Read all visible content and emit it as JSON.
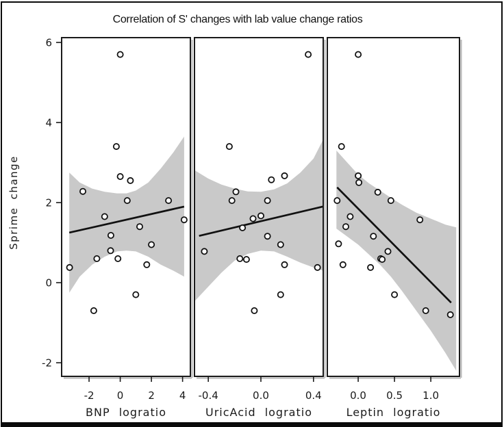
{
  "chart_data": {
    "type": "scatter",
    "title": "Correlation of S' changes with lab value change ratios",
    "ylabel": "Sprime change",
    "ylim": [
      -2.34,
      6.12
    ],
    "yticks": [
      -2,
      0,
      2,
      4,
      6
    ],
    "ytick_labels": [
      "-2",
      "0",
      "2",
      "4",
      "6"
    ],
    "shared_y_axis": true,
    "legend": "none",
    "grid": false,
    "band_color": "#c9c9c9",
    "line_color": "#111111",
    "marker": "open-circle",
    "panels": [
      {
        "xlabel": "BNP logratio",
        "xlim": [
          -3.76,
          4.5
        ],
        "xticks": [
          -2,
          0,
          2,
          4
        ],
        "xtick_labels": [
          "-2",
          "0",
          "2",
          "4"
        ],
        "points": [
          [
            0.0,
            5.7
          ],
          [
            -0.25,
            3.4
          ],
          [
            0.0,
            2.65
          ],
          [
            0.65,
            2.55
          ],
          [
            -2.4,
            2.28
          ],
          [
            0.45,
            2.05
          ],
          [
            3.1,
            2.05
          ],
          [
            -1.0,
            1.65
          ],
          [
            4.1,
            1.57
          ],
          [
            1.25,
            1.4
          ],
          [
            -0.6,
            1.18
          ],
          [
            2.0,
            0.95
          ],
          [
            -0.62,
            0.8
          ],
          [
            -1.5,
            0.6
          ],
          [
            -0.15,
            0.6
          ],
          [
            1.7,
            0.45
          ],
          [
            -3.25,
            0.38
          ],
          [
            1.0,
            -0.3
          ],
          [
            -1.7,
            -0.7
          ]
        ],
        "fit_line": {
          "x": [
            -3.27,
            4.1
          ],
          "y": [
            1.25,
            1.9
          ]
        },
        "band": [
          [
            -3.27,
            -0.25,
            2.75
          ],
          [
            -2.6,
            0.15,
            2.5
          ],
          [
            -1.8,
            0.45,
            2.35
          ],
          [
            -1.0,
            0.65,
            2.27
          ],
          [
            -0.2,
            0.78,
            2.23
          ],
          [
            0.4,
            0.8,
            2.23
          ],
          [
            1.0,
            0.78,
            2.3
          ],
          [
            1.8,
            0.65,
            2.5
          ],
          [
            2.6,
            0.45,
            2.85
          ],
          [
            3.4,
            0.3,
            3.25
          ],
          [
            4.1,
            0.15,
            3.65
          ]
        ]
      },
      {
        "xlabel": "UricAcid logratio",
        "xlim": [
          -0.505,
          0.474
        ],
        "xticks": [
          -0.4,
          0.0,
          0.4
        ],
        "xtick_labels": [
          "-0.4",
          "0.0",
          "0.4"
        ],
        "points": [
          [
            0.36,
            5.7
          ],
          [
            -0.24,
            3.4
          ],
          [
            0.18,
            2.67
          ],
          [
            0.08,
            2.57
          ],
          [
            -0.19,
            2.27
          ],
          [
            -0.22,
            2.05
          ],
          [
            0.05,
            2.05
          ],
          [
            0.0,
            1.67
          ],
          [
            -0.06,
            1.6
          ],
          [
            -0.14,
            1.37
          ],
          [
            0.05,
            1.16
          ],
          [
            0.15,
            0.95
          ],
          [
            -0.43,
            0.78
          ],
          [
            -0.16,
            0.6
          ],
          [
            -0.11,
            0.58
          ],
          [
            0.18,
            0.45
          ],
          [
            0.43,
            0.38
          ],
          [
            0.15,
            -0.3
          ],
          [
            -0.05,
            -0.7
          ]
        ],
        "fit_line": {
          "x": [
            -0.47,
            0.47
          ],
          "y": [
            1.17,
            1.9
          ]
        },
        "band": [
          [
            -0.5,
            -0.45,
            2.8
          ],
          [
            -0.4,
            -0.1,
            2.6
          ],
          [
            -0.3,
            0.25,
            2.45
          ],
          [
            -0.2,
            0.55,
            2.35
          ],
          [
            -0.1,
            0.72,
            2.28
          ],
          [
            0.0,
            0.8,
            2.27
          ],
          [
            0.1,
            0.78,
            2.33
          ],
          [
            0.2,
            0.65,
            2.48
          ],
          [
            0.3,
            0.5,
            2.75
          ],
          [
            0.4,
            0.38,
            3.1
          ],
          [
            0.47,
            0.3,
            3.55
          ]
        ]
      },
      {
        "xlabel": "Leptin logratio",
        "xlim": [
          -0.425,
          1.395
        ],
        "xticks": [
          0.0,
          0.5,
          1.0
        ],
        "xtick_labels": [
          "0.0",
          "0.5",
          "1.0"
        ],
        "points": [
          [
            0.0,
            5.7
          ],
          [
            -0.23,
            3.4
          ],
          [
            0.0,
            2.67
          ],
          [
            0.01,
            2.5
          ],
          [
            0.27,
            2.26
          ],
          [
            -0.29,
            2.05
          ],
          [
            0.45,
            2.05
          ],
          [
            -0.11,
            1.65
          ],
          [
            0.85,
            1.57
          ],
          [
            -0.17,
            1.4
          ],
          [
            0.21,
            1.16
          ],
          [
            -0.27,
            0.97
          ],
          [
            0.41,
            0.78
          ],
          [
            0.31,
            0.6
          ],
          [
            0.33,
            0.58
          ],
          [
            -0.21,
            0.45
          ],
          [
            0.17,
            0.38
          ],
          [
            0.5,
            -0.3
          ],
          [
            0.93,
            -0.7
          ],
          [
            1.27,
            -0.8
          ]
        ],
        "fit_line": {
          "x": [
            -0.29,
            1.28
          ],
          "y": [
            2.38,
            -0.5
          ]
        },
        "band": [
          [
            -0.3,
            1.35,
            3.3
          ],
          [
            -0.15,
            1.15,
            3.0
          ],
          [
            0.0,
            0.95,
            2.7
          ],
          [
            0.15,
            0.7,
            2.48
          ],
          [
            0.3,
            0.45,
            2.3
          ],
          [
            0.45,
            0.15,
            2.12
          ],
          [
            0.6,
            -0.2,
            1.95
          ],
          [
            0.8,
            -0.7,
            1.75
          ],
          [
            1.0,
            -1.2,
            1.6
          ],
          [
            1.2,
            -1.75,
            1.45
          ],
          [
            1.35,
            -2.2,
            1.38
          ]
        ]
      }
    ]
  }
}
